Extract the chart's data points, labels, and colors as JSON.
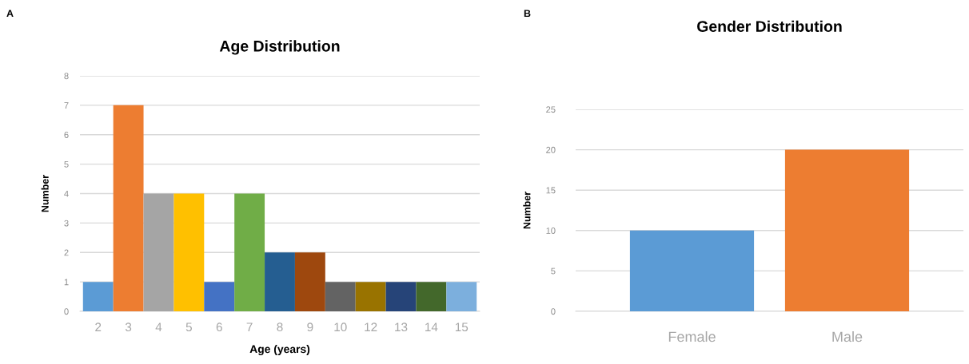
{
  "chart_data": [
    {
      "type": "bar",
      "title": "Age Distribution",
      "xlabel": "Age (years)",
      "ylabel": "Number",
      "annotations": [
        "A"
      ],
      "categories": [
        "2",
        "3",
        "4",
        "5",
        "6",
        "7",
        "8",
        "9",
        "10",
        "12",
        "13",
        "14",
        "15"
      ],
      "values": [
        1,
        7,
        4,
        4,
        1,
        4,
        2,
        2,
        1,
        1,
        1,
        1,
        1
      ],
      "colors": [
        "#5b9bd5",
        "#ed7d31",
        "#a5a5a5",
        "#ffc000",
        "#4472c4",
        "#70ad47",
        "#255e91",
        "#9e480e",
        "#636363",
        "#997300",
        "#264478",
        "#43682b",
        "#7cafdd"
      ],
      "ylim": [
        0,
        8
      ],
      "yticks": [
        0,
        1,
        2,
        3,
        4,
        5,
        6,
        7,
        8
      ],
      "grid": "y"
    },
    {
      "type": "bar",
      "title": "Gender Distribution",
      "ylabel": "Number",
      "annotations": [
        "B"
      ],
      "categories": [
        "Female",
        "Male"
      ],
      "values": [
        10,
        20
      ],
      "colors": [
        "#5b9bd5",
        "#ed7d31"
      ],
      "ylim": [
        0,
        25
      ],
      "yticks": [
        0,
        5,
        10,
        15,
        20,
        25
      ],
      "grid": "y"
    }
  ]
}
